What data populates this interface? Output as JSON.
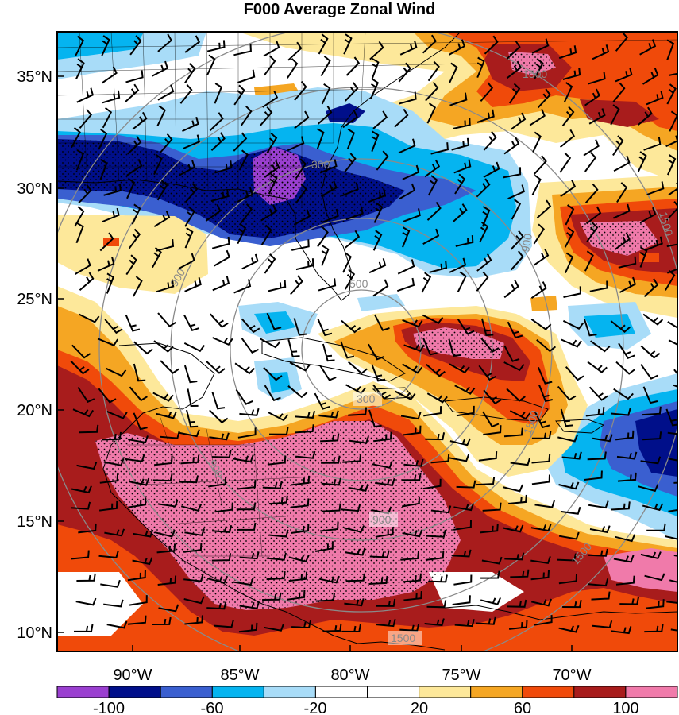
{
  "title": "F000 Average Zonal Wind",
  "lat_labels": [
    "35°N",
    "30°N",
    "25°N",
    "20°N",
    "15°N",
    "10°N"
  ],
  "lon_labels": [
    "90°W",
    "85°W",
    "80°W",
    "75°W",
    "70°W"
  ],
  "colorbar": {
    "labels": [
      "-100",
      "-60",
      "-20",
      "20",
      "60",
      "100"
    ],
    "colors": [
      "#9a3fd0",
      "#000f8a",
      "#3a5fd0",
      "#05b4f0",
      "#a8dcf8",
      "#ffffff",
      "#ffffff",
      "#fde89a",
      "#f5a623",
      "#f04a0a",
      "#a81c1c",
      "#f07aaa"
    ]
  },
  "range_rings": {
    "labels": [
      "300",
      "900",
      "1500",
      "900",
      "500",
      "900",
      "1500",
      "1500",
      "300",
      "1500",
      "900",
      "1500"
    ],
    "color": "#8a8a8a"
  },
  "colors": {
    "strong_east": "#9a3fd0",
    "east": "#000f8a",
    "moderate_east": "#3a5fd0",
    "light_east": "#05b4f0",
    "pale_east": "#a8dcf8",
    "calm": "#ffffff",
    "pale_west": "#fde89a",
    "light_west": "#f5a623",
    "moderate_west": "#f04a0a",
    "west": "#a81c1c",
    "strong_west": "#f07aaa"
  }
}
